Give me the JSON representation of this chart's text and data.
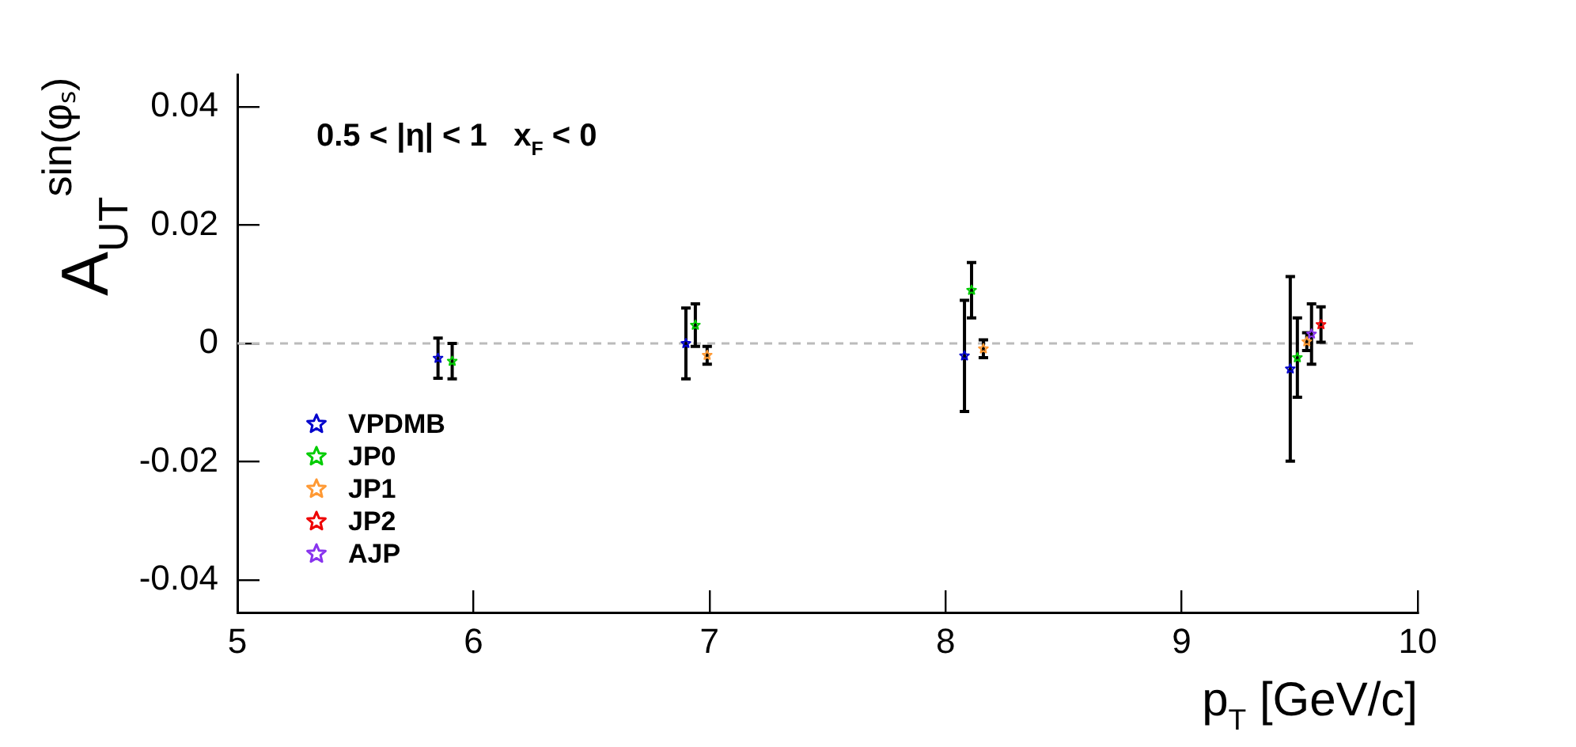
{
  "chart_data": {
    "type": "scatter",
    "xlabel": "p$_{T}$ [GeV/c]",
    "ylabel": "A$_{UT}$$^{sin(φₛ)}$",
    "xlim": [
      5,
      10
    ],
    "xticks": [
      5,
      6,
      7,
      8,
      9,
      10
    ],
    "ylim": [
      -0.0455,
      0.0455
    ],
    "yticks": [
      -0.04,
      -0.02,
      0,
      0.02,
      0.04
    ],
    "grid": false,
    "legend": "bottom left",
    "marker": "star",
    "annotations": [
      "0.5 < |η| < 1   x$_{F}$ < 0"
    ],
    "ref_lines": [
      {
        "axis": "y",
        "value": 0,
        "color": "#bbbbbb",
        "line_style": "dashed"
      }
    ],
    "series": [
      {
        "name": "VPDMB",
        "color": "#0000cc",
        "x": [
          5.85,
          6.9,
          8.08,
          9.46
        ],
        "values": [
          -0.0025,
          0.0,
          -0.0021,
          -0.0043
        ],
        "errors": [
          0.0034,
          0.006,
          0.0094,
          0.0156
        ]
      },
      {
        "name": "JP0",
        "color": "#00cc00",
        "x": [
          5.91,
          6.94,
          8.11,
          9.49
        ],
        "values": [
          -0.003,
          0.0031,
          0.009,
          -0.0024
        ],
        "errors": [
          0.003,
          0.0036,
          0.0047,
          0.0067
        ]
      },
      {
        "name": "JP1",
        "color": "#ff9933",
        "x": [
          6.99,
          8.16,
          9.53
        ],
        "values": [
          -0.002,
          -0.0009,
          0.0003
        ],
        "errors": [
          0.0015,
          0.0015,
          0.0015
        ]
      },
      {
        "name": "JP2",
        "color": "#ee0000",
        "x": [
          9.59
        ],
        "values": [
          0.0032
        ],
        "errors": [
          0.003
        ]
      },
      {
        "name": "AJP",
        "color": "#8833ee",
        "x": [
          9.55
        ],
        "values": [
          0.0016
        ],
        "errors": [
          0.0051
        ]
      }
    ]
  }
}
